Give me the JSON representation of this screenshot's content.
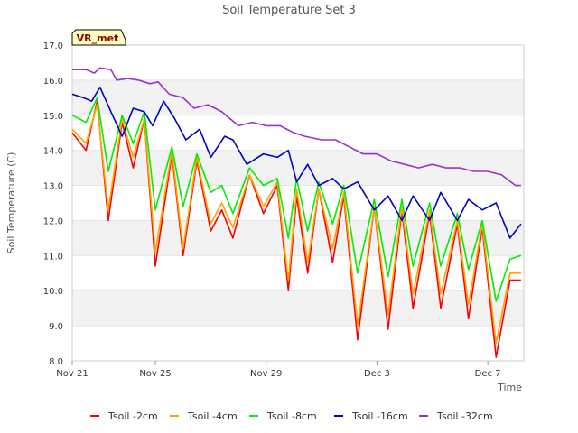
{
  "chart_data": {
    "type": "line",
    "title": "Soil Temperature Set 3",
    "xlabel": "Time",
    "ylabel": "Soil Temperature (C)",
    "ylim": [
      8.0,
      17.0
    ],
    "xlim": [
      0,
      16.3
    ],
    "yticks": [
      8.0,
      9.0,
      10.0,
      11.0,
      12.0,
      13.0,
      14.0,
      15.0,
      16.0,
      17.0
    ],
    "ytick_labels": [
      "8.0",
      "9.0",
      "10.0",
      "11.0",
      "12.0",
      "13.0",
      "14.0",
      "15.0",
      "16.0",
      "17.0"
    ],
    "xticks": [
      0,
      3,
      7,
      11,
      15
    ],
    "xtick_labels": [
      "Nov 21",
      "Nov 25",
      "Nov 29",
      "Dec 3",
      "Dec 7"
    ],
    "band_color": "#f2f2f2",
    "legend_position": "bottom",
    "annotation": {
      "text": "VR_met",
      "fill": "#ffffc0",
      "text_color": "#8b0000"
    },
    "series": [
      {
        "name": "Tsoil -2cm",
        "color": "#ff0000",
        "x": [
          0,
          0.5,
          0.9,
          1.3,
          1.8,
          2.2,
          2.6,
          3.0,
          3.6,
          4.0,
          4.5,
          5.0,
          5.4,
          5.8,
          6.4,
          6.9,
          7.4,
          7.8,
          8.1,
          8.5,
          8.9,
          9.4,
          9.8,
          10.3,
          10.9,
          11.4,
          11.9,
          12.3,
          12.9,
          13.3,
          13.9,
          14.3,
          14.8,
          15.3,
          15.8,
          16.2
        ],
        "y": [
          14.5,
          14.0,
          15.4,
          12.0,
          14.8,
          13.5,
          14.9,
          10.7,
          13.9,
          11.0,
          13.7,
          11.7,
          12.3,
          11.5,
          13.3,
          12.2,
          13.0,
          10.0,
          12.7,
          10.5,
          12.9,
          10.8,
          12.7,
          8.6,
          12.4,
          8.9,
          12.3,
          9.5,
          12.2,
          9.5,
          11.9,
          9.2,
          11.8,
          8.1,
          10.3,
          10.3
        ]
      },
      {
        "name": "Tsoil -4cm",
        "color": "#ffa500",
        "x": [
          0,
          0.5,
          0.9,
          1.3,
          1.8,
          2.2,
          2.6,
          3.0,
          3.6,
          4.0,
          4.5,
          5.0,
          5.4,
          5.8,
          6.4,
          6.9,
          7.4,
          7.8,
          8.1,
          8.5,
          8.9,
          9.4,
          9.8,
          10.3,
          10.9,
          11.4,
          11.9,
          12.3,
          12.9,
          13.3,
          13.9,
          14.3,
          14.8,
          15.3,
          15.8,
          16.2
        ],
        "y": [
          14.6,
          14.2,
          15.3,
          12.3,
          14.9,
          13.8,
          14.9,
          11.1,
          14.0,
          11.2,
          13.8,
          11.9,
          12.5,
          11.8,
          13.3,
          12.4,
          13.1,
          10.3,
          12.9,
          10.8,
          12.9,
          11.2,
          12.8,
          9.0,
          12.4,
          9.3,
          12.4,
          9.9,
          12.3,
          9.9,
          12.0,
          9.6,
          11.9,
          8.5,
          10.5,
          10.5
        ]
      },
      {
        "name": "Tsoil -8cm",
        "color": "#00ee00",
        "x": [
          0,
          0.5,
          0.9,
          1.3,
          1.8,
          2.2,
          2.6,
          3.0,
          3.6,
          4.0,
          4.5,
          5.0,
          5.4,
          5.8,
          6.4,
          6.9,
          7.4,
          7.8,
          8.1,
          8.5,
          8.9,
          9.4,
          9.8,
          10.3,
          10.9,
          11.4,
          11.9,
          12.3,
          12.9,
          13.3,
          13.9,
          14.3,
          14.8,
          15.3,
          15.8,
          16.2
        ],
        "y": [
          15.0,
          14.8,
          15.5,
          13.4,
          15.0,
          14.2,
          15.1,
          12.3,
          14.1,
          12.4,
          13.9,
          12.8,
          13.0,
          12.2,
          13.5,
          13.0,
          13.2,
          11.5,
          13.2,
          11.7,
          13.1,
          11.9,
          13.0,
          10.5,
          12.6,
          10.4,
          12.6,
          10.7,
          12.5,
          10.7,
          12.2,
          10.6,
          12.0,
          9.7,
          10.9,
          11.0
        ]
      },
      {
        "name": "Tsoil -16cm",
        "color": "#0000cc",
        "x": [
          0,
          0.4,
          0.7,
          1.0,
          1.4,
          1.8,
          2.2,
          2.6,
          2.9,
          3.3,
          3.7,
          4.1,
          4.6,
          5.0,
          5.5,
          5.8,
          6.3,
          6.9,
          7.4,
          7.8,
          8.1,
          8.5,
          8.9,
          9.4,
          9.8,
          10.3,
          10.9,
          11.4,
          11.9,
          12.3,
          12.9,
          13.3,
          13.9,
          14.3,
          14.8,
          15.3,
          15.8,
          16.2
        ],
        "y": [
          15.6,
          15.5,
          15.4,
          15.8,
          15.1,
          14.4,
          15.2,
          15.1,
          14.7,
          15.4,
          14.9,
          14.3,
          14.6,
          13.8,
          14.4,
          14.3,
          13.6,
          13.9,
          13.8,
          14.0,
          13.1,
          13.6,
          13.0,
          13.2,
          12.9,
          13.1,
          12.3,
          12.7,
          12.0,
          12.7,
          12.0,
          12.8,
          12.0,
          12.6,
          12.3,
          12.5,
          11.5,
          11.9
        ]
      },
      {
        "name": "Tsoil -32cm",
        "color": "#9932cc",
        "x": [
          0,
          0.5,
          0.8,
          1.0,
          1.4,
          1.6,
          2.0,
          2.4,
          2.8,
          3.1,
          3.5,
          4.0,
          4.4,
          4.9,
          5.4,
          6.0,
          6.5,
          7.0,
          7.5,
          8.0,
          8.4,
          9.0,
          9.5,
          10.0,
          10.5,
          11.0,
          11.5,
          12.0,
          12.5,
          13.0,
          13.5,
          14.0,
          14.5,
          15.0,
          15.5,
          16.0,
          16.2
        ],
        "y": [
          16.3,
          16.3,
          16.2,
          16.35,
          16.3,
          16.0,
          16.05,
          16.0,
          15.9,
          15.95,
          15.6,
          15.5,
          15.2,
          15.3,
          15.1,
          14.7,
          14.8,
          14.7,
          14.7,
          14.5,
          14.4,
          14.3,
          14.3,
          14.1,
          13.9,
          13.9,
          13.7,
          13.6,
          13.5,
          13.6,
          13.5,
          13.5,
          13.4,
          13.4,
          13.3,
          13.0,
          13.0
        ]
      }
    ]
  }
}
